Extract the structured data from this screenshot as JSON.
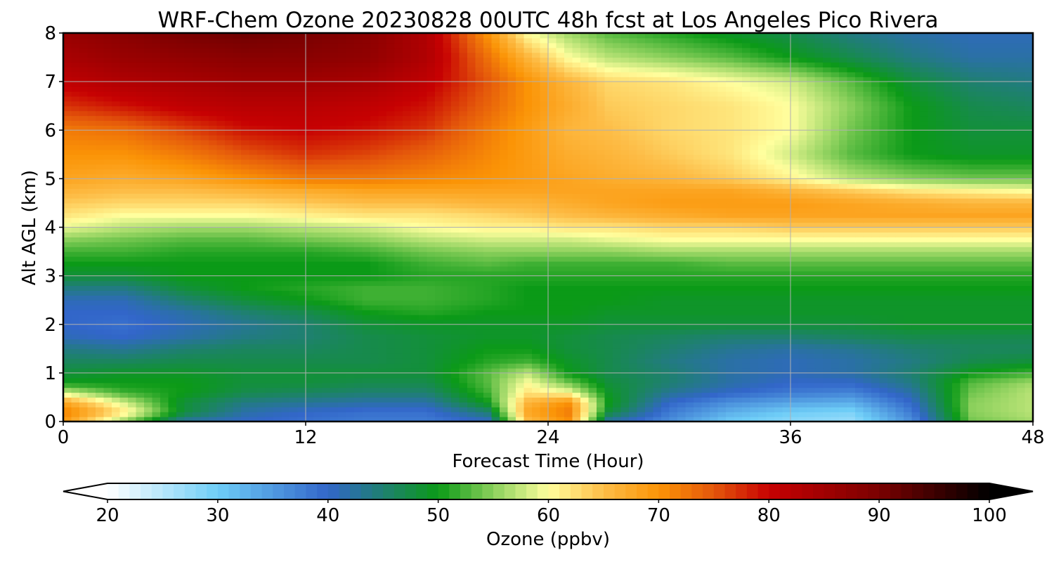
{
  "chart_data": {
    "type": "heatmap",
    "title": "WRF-Chem Ozone  20230828 00UTC 48h fcst at Los Angeles Pico Rivera",
    "xlabel": "Forecast Time (Hour)",
    "ylabel": "Alt AGL (km)",
    "xlim": [
      0,
      48
    ],
    "ylim": [
      0,
      8
    ],
    "xticks": [
      0,
      12,
      24,
      36,
      48
    ],
    "yticks": [
      0,
      1,
      2,
      3,
      4,
      5,
      6,
      7,
      8
    ],
    "grid": true,
    "x": [
      0,
      3,
      6,
      9,
      12,
      15,
      18,
      21,
      23,
      25,
      27,
      30,
      33,
      36,
      39,
      42,
      45,
      48
    ],
    "y": [
      0,
      0.2,
      0.4,
      0.6,
      0.8,
      1,
      1.25,
      1.5,
      1.75,
      2,
      2.25,
      2.5,
      2.75,
      3,
      3.25,
      3.5,
      3.75,
      4,
      4.25,
      4.5,
      4.75,
      5,
      5.5,
      6,
      6.5,
      7,
      7.5,
      8
    ],
    "z": [
      [
        69,
        55,
        42,
        40,
        39,
        38,
        38,
        40,
        65,
        70,
        42,
        36,
        30,
        28,
        27,
        36,
        54,
        56
      ],
      [
        72,
        62,
        48,
        42,
        40,
        39,
        39,
        45,
        68,
        72,
        48,
        38,
        33,
        30,
        29,
        38,
        55,
        57
      ],
      [
        68,
        58,
        48,
        44,
        43,
        42,
        42,
        50,
        66,
        70,
        50,
        40,
        36,
        34,
        33,
        40,
        55,
        57
      ],
      [
        58,
        52,
        50,
        47,
        46,
        45,
        45,
        52,
        62,
        60,
        49,
        43,
        40,
        38,
        37,
        42,
        54,
        57
      ],
      [
        50,
        50,
        50,
        48,
        48,
        47,
        47,
        53,
        60,
        54,
        48,
        45,
        42,
        40,
        40,
        44,
        53,
        56
      ],
      [
        48,
        49,
        49,
        48,
        48,
        48,
        48,
        53,
        57,
        50,
        47,
        45,
        42,
        41,
        42,
        45,
        50,
        52
      ],
      [
        46,
        46,
        47,
        47,
        47,
        47,
        48,
        51,
        52,
        49,
        47,
        44,
        42,
        41,
        42,
        44,
        47,
        48
      ],
      [
        44,
        43,
        45,
        46,
        46,
        47,
        48,
        50,
        50,
        48,
        47,
        45,
        43,
        42,
        43,
        45,
        46,
        46
      ],
      [
        41,
        40,
        42,
        44,
        45,
        47,
        48,
        49,
        49,
        48,
        47,
        46,
        45,
        45,
        46,
        47,
        47,
        47
      ],
      [
        40,
        39,
        41,
        43,
        45,
        48,
        49,
        49,
        49,
        49,
        48,
        48,
        48,
        48,
        48,
        49,
        49,
        49
      ],
      [
        40,
        40,
        42,
        45,
        47,
        50,
        51,
        50,
        50,
        50,
        49,
        49,
        49,
        49,
        49,
        49,
        49,
        49
      ],
      [
        41,
        41,
        45,
        48,
        50,
        52,
        52,
        51,
        50,
        50,
        50,
        49,
        49,
        49,
        49,
        49,
        49,
        49
      ],
      [
        44,
        44,
        48,
        50,
        51,
        52,
        52,
        51,
        50,
        50,
        50,
        50,
        50,
        50,
        50,
        50,
        50,
        50
      ],
      [
        48,
        48,
        50,
        50,
        50,
        50,
        51,
        51,
        51,
        51,
        51,
        51,
        51,
        51,
        51,
        51,
        51,
        51
      ],
      [
        50,
        50,
        50,
        50,
        50,
        50,
        52,
        53,
        52,
        52,
        52,
        52,
        53,
        53,
        53,
        53,
        53,
        53
      ],
      [
        52,
        52,
        51,
        51,
        51,
        52,
        54,
        55,
        55,
        55,
        55,
        56,
        56,
        56,
        56,
        56,
        56,
        56
      ],
      [
        55,
        54,
        53,
        53,
        54,
        55,
        57,
        58,
        58,
        58,
        59,
        60,
        60,
        60,
        60,
        60,
        60,
        60
      ],
      [
        59,
        57,
        56,
        56,
        57,
        58,
        60,
        61,
        61,
        62,
        62,
        63,
        63,
        64,
        64,
        64,
        64,
        64
      ],
      [
        62,
        60,
        60,
        60,
        61,
        62,
        62,
        63,
        64,
        65,
        66,
        67,
        68,
        68,
        68,
        68,
        68,
        68
      ],
      [
        64,
        63,
        63,
        63,
        64,
        65,
        65,
        66,
        66,
        67,
        68,
        69,
        69,
        69,
        68,
        67,
        66,
        66
      ],
      [
        66,
        65,
        65,
        66,
        67,
        68,
        68,
        68,
        68,
        68,
        68,
        68,
        68,
        66,
        64,
        62,
        61,
        60
      ],
      [
        68,
        67,
        68,
        70,
        72,
        72,
        71,
        70,
        69,
        68,
        67,
        66,
        64,
        61,
        57,
        55,
        54,
        54
      ],
      [
        70,
        70,
        72,
        75,
        77,
        76,
        74,
        71,
        69,
        67,
        66,
        64,
        62,
        58,
        53,
        50,
        49,
        49
      ],
      [
        72,
        73,
        76,
        79,
        80,
        79,
        77,
        72,
        69,
        66,
        65,
        63,
        62,
        60,
        54,
        50,
        48,
        48
      ],
      [
        77,
        79,
        81,
        82,
        82,
        81,
        79,
        74,
        70,
        67,
        64,
        63,
        62,
        60,
        55,
        50,
        47,
        46
      ],
      [
        81,
        83,
        84,
        85,
        85,
        84,
        81,
        75,
        70,
        66,
        63,
        62,
        60,
        58,
        53,
        48,
        45,
        44
      ],
      [
        84,
        86,
        87,
        88,
        88,
        87,
        83,
        73,
        66,
        60,
        57,
        55,
        53,
        50,
        47,
        44,
        42,
        42
      ],
      [
        86,
        88,
        90,
        91,
        90,
        88,
        83,
        70,
        60,
        56,
        53,
        51,
        49,
        47,
        44,
        42,
        41,
        41
      ]
    ],
    "colorbar": {
      "label": "Ozone  (ppbv)",
      "min": 20,
      "max": 100,
      "ticks": [
        20,
        30,
        40,
        50,
        60,
        70,
        80,
        90,
        100
      ],
      "extend": "both",
      "colors": [
        {
          "v": 20,
          "c": "#ffffff"
        },
        {
          "v": 30,
          "c": "#6ecdf7"
        },
        {
          "v": 40,
          "c": "#3266c9"
        },
        {
          "v": 50,
          "c": "#0b9a17"
        },
        {
          "v": 55,
          "c": "#8bd05c"
        },
        {
          "v": 60,
          "c": "#ffff9e"
        },
        {
          "v": 65,
          "c": "#fdbd47"
        },
        {
          "v": 70,
          "c": "#fb9406"
        },
        {
          "v": 75,
          "c": "#e4570b"
        },
        {
          "v": 80,
          "c": "#c70102"
        },
        {
          "v": 90,
          "c": "#7a0101"
        },
        {
          "v": 100,
          "c": "#000000"
        }
      ]
    }
  }
}
